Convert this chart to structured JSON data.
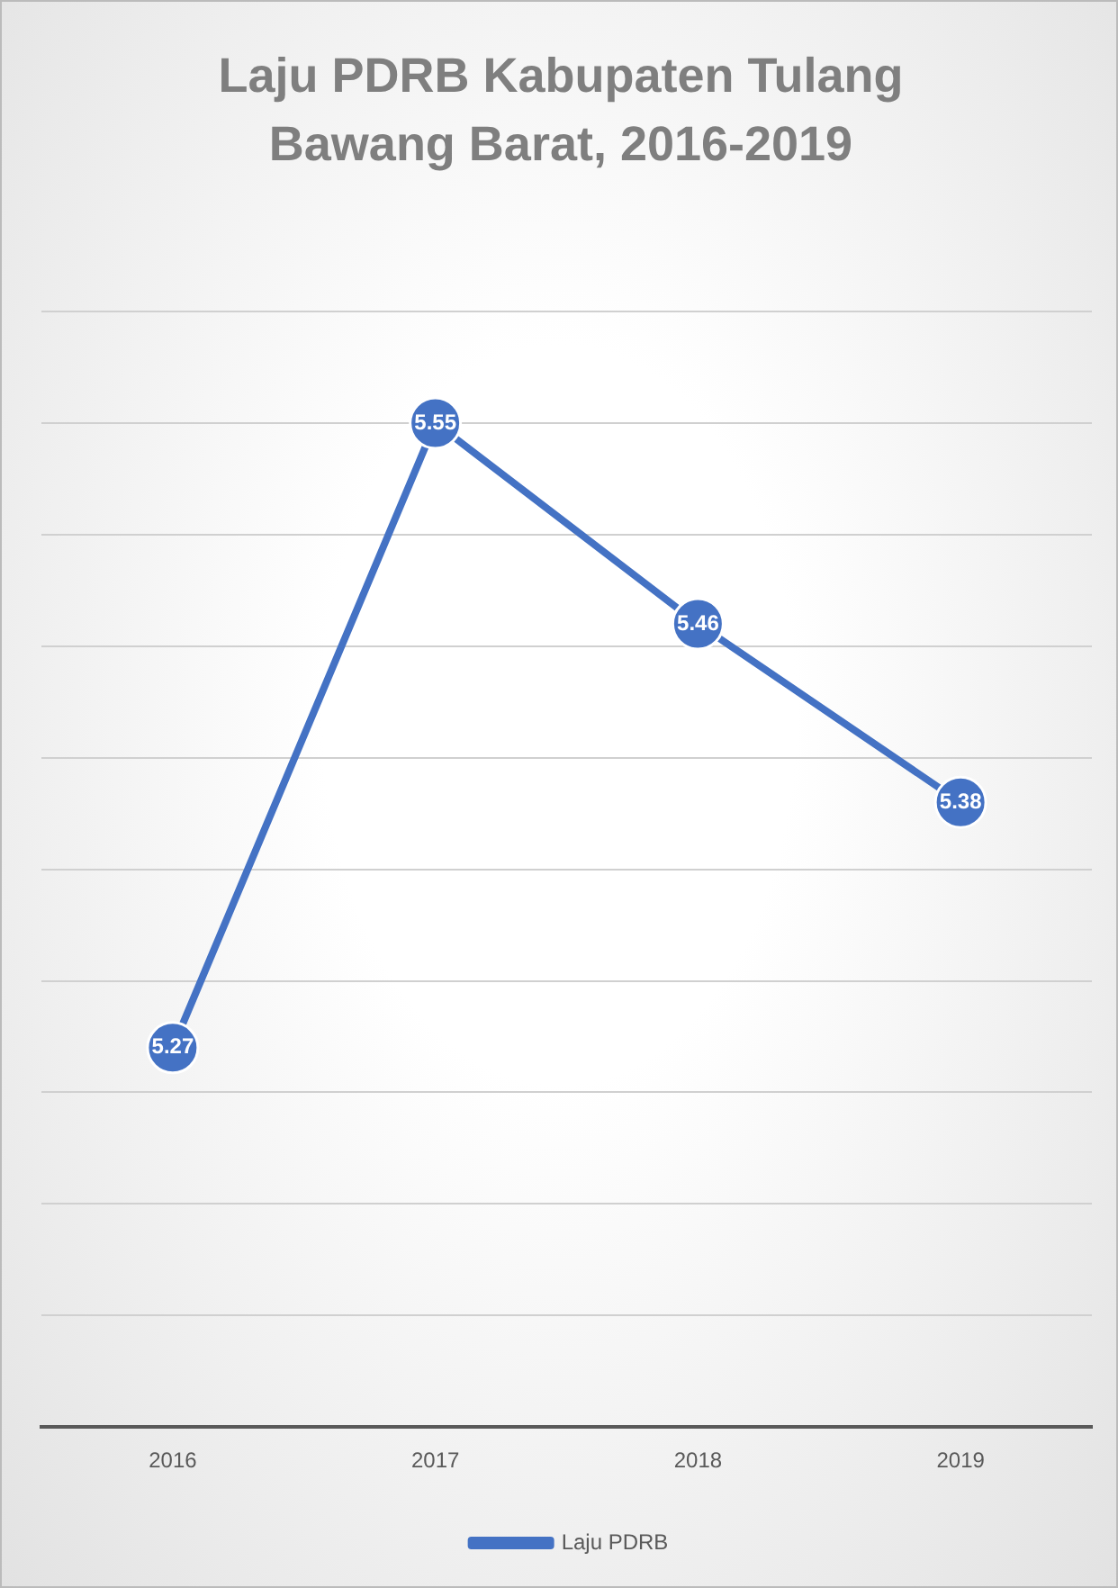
{
  "chart_data": {
    "type": "line",
    "title": "Laju PDRB Kabupaten Tulang Bawang Barat, 2016-2019",
    "categories": [
      "2016",
      "2017",
      "2018",
      "2019"
    ],
    "series": [
      {
        "name": "Laju PDRB",
        "color": "#4472c4",
        "values": [
          5.27,
          5.55,
          5.46,
          5.38
        ]
      }
    ],
    "ylim": [
      5.1,
      5.6
    ],
    "yticks": [
      {
        "value": 5.1,
        "label": null
      },
      {
        "value": 5.15,
        "label": null
      },
      {
        "value": 5.2,
        "label": null
      },
      {
        "value": 5.25,
        "label": null
      },
      {
        "value": 5.3,
        "label": null
      },
      {
        "value": 5.35,
        "label": null
      },
      {
        "value": 5.4,
        "label": null
      },
      {
        "value": 5.45,
        "label": null
      },
      {
        "value": 5.5,
        "label": null
      },
      {
        "value": 5.55,
        "label": null
      },
      {
        "value": 5.6,
        "label": null
      }
    ],
    "tick_labels": "x",
    "grid": "y",
    "legend": "bottom",
    "marker": "circle",
    "line_style": "solid",
    "data_labels": true
  }
}
